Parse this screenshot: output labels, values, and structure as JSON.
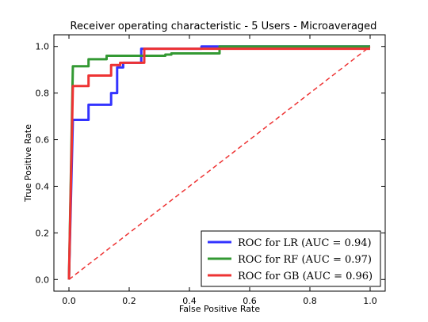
{
  "chart_data": {
    "type": "line",
    "title": "Receiver operating characteristic - 5 Users - Microaveraged",
    "xlabel": "False Positive Rate",
    "ylabel": "True Positive Rate",
    "xlim": [
      -0.05,
      1.05
    ],
    "ylim": [
      -0.05,
      1.05
    ],
    "x_ticks": [
      "0.0",
      "0.2",
      "0.4",
      "0.6",
      "0.8",
      "1.0"
    ],
    "y_ticks": [
      "0.0",
      "0.2",
      "0.4",
      "0.6",
      "0.8",
      "1.0"
    ],
    "x_tick_values": [
      0,
      0.2,
      0.4,
      0.6,
      0.8,
      1.0
    ],
    "y_tick_values": [
      0,
      0.2,
      0.4,
      0.6,
      0.8,
      1.0
    ],
    "grid": false,
    "legend_position": "lower-right",
    "series": [
      {
        "name": "ROC for LR (AUC = 0.94)",
        "color": "#3333ff",
        "x": [
          0,
          0.013,
          0.013,
          0.065,
          0.065,
          0.14,
          0.14,
          0.16,
          0.16,
          0.18,
          0.18,
          0.24,
          0.24,
          0.44,
          0.44,
          1.0
        ],
        "y": [
          0,
          0.685,
          0.685,
          0.685,
          0.75,
          0.75,
          0.8,
          0.8,
          0.91,
          0.91,
          0.93,
          0.93,
          0.99,
          0.99,
          1.0,
          1.0
        ]
      },
      {
        "name": "ROC for RF (AUC = 0.97)",
        "color": "#339933",
        "x": [
          0,
          0.013,
          0.013,
          0.045,
          0.065,
          0.065,
          0.125,
          0.125,
          0.32,
          0.32,
          0.34,
          0.34,
          0.5,
          0.5,
          1.0
        ],
        "y": [
          0,
          0.915,
          0.915,
          0.915,
          0.915,
          0.945,
          0.945,
          0.96,
          0.96,
          0.965,
          0.965,
          0.97,
          0.97,
          1.0,
          1.0
        ]
      },
      {
        "name": "ROC for GB (AUC = 0.96)",
        "color": "#ee3333",
        "x": [
          0,
          0.013,
          0.013,
          0.045,
          0.065,
          0.065,
          0.14,
          0.14,
          0.17,
          0.17,
          0.25,
          0.25,
          1.0
        ],
        "y": [
          0,
          0.83,
          0.83,
          0.83,
          0.83,
          0.875,
          0.875,
          0.92,
          0.92,
          0.93,
          0.93,
          0.99,
          0.99
        ]
      }
    ],
    "reference_line": {
      "color": "#ee3333",
      "style": "dashed",
      "x": [
        0,
        1
      ],
      "y": [
        0,
        1
      ]
    }
  }
}
